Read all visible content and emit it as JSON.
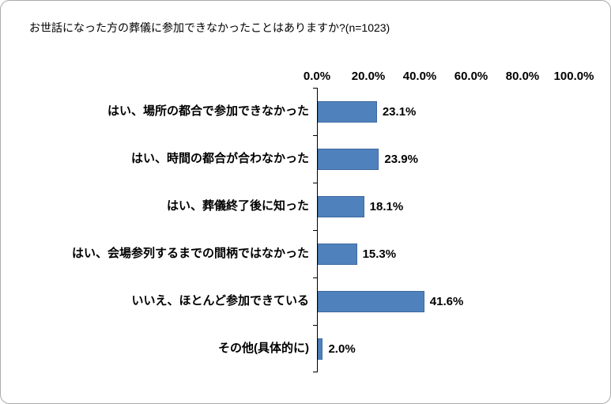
{
  "chart_data": {
    "type": "bar",
    "orientation": "horizontal",
    "title": "お世話になった方の葬儀に参加できなかったことはありますか?(n=1023)",
    "categories": [
      "はい、場所の都合で参加できなかった",
      "はい、時間の都合が合わなかった",
      "はい、葬儀終了後に知った",
      "はい、会場参列するまでの間柄ではなかった",
      "いいえ、ほとんど参加できている",
      "その他(具体的に)"
    ],
    "values": [
      23.1,
      23.9,
      18.1,
      15.3,
      41.6,
      2.0
    ],
    "value_labels": [
      "23.1%",
      "23.9%",
      "18.1%",
      "15.3%",
      "41.6%",
      "2.0%"
    ],
    "x_ticks": [
      "0.0%",
      "20.0%",
      "40.0%",
      "60.0%",
      "80.0%",
      "100.0%"
    ],
    "xlim": [
      0,
      100
    ],
    "xlabel": "",
    "ylabel": "",
    "grid": "off",
    "legend": "none",
    "bar_color": "#4f81bd"
  }
}
